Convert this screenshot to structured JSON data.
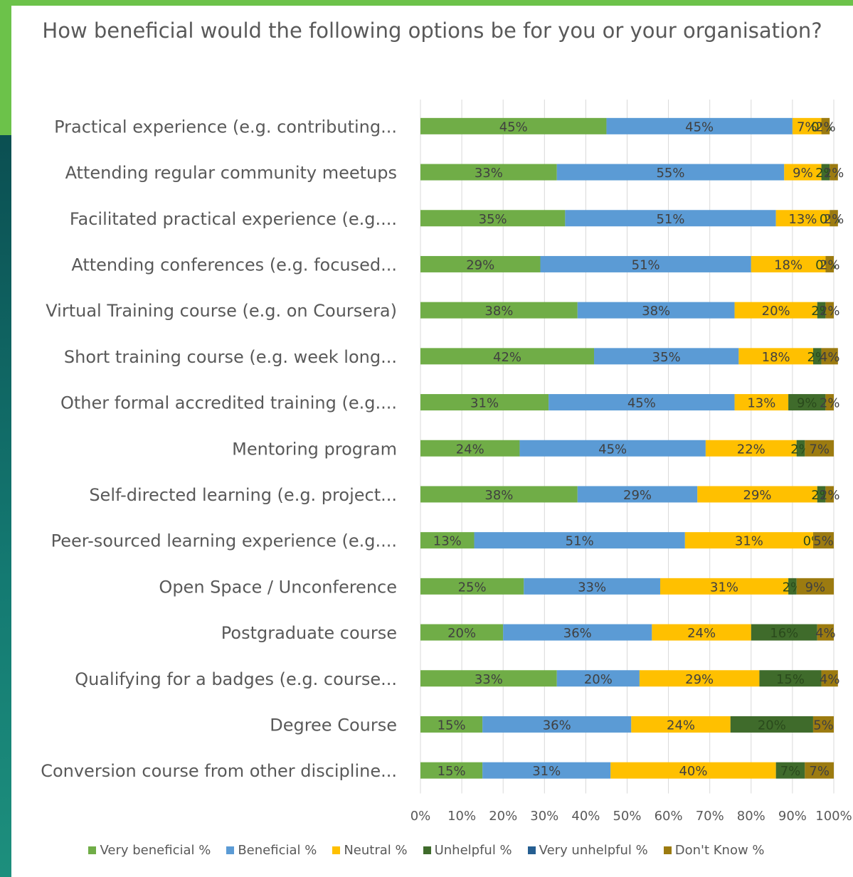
{
  "chart_data": {
    "type": "bar",
    "orientation": "horizontal",
    "stacked": "percent",
    "title": "How beneficial would the following options be for you or your organisation?",
    "categories": [
      "Practical experience (e.g. contributing...",
      "Attending regular community meetups",
      "Facilitated practical experience (e.g....",
      "Attending conferences (e.g. focused...",
      "Virtual Training course (e.g. on Coursera)",
      "Short training course (e.g. week long...",
      "Other formal accredited training (e.g....",
      "Mentoring program",
      "Self-directed learning (e.g. project...",
      "Peer-sourced learning experience (e.g....",
      "Open Space / Unconference",
      "Postgraduate course",
      "Qualifying for a badges (e.g. course...",
      "Degree Course",
      "Conversion course from other discipline..."
    ],
    "series": [
      {
        "name": "Very beneficial %",
        "color": "#70ad47",
        "values": [
          45,
          33,
          35,
          29,
          38,
          42,
          31,
          24,
          38,
          13,
          25,
          20,
          33,
          15,
          15
        ]
      },
      {
        "name": "Beneficial %",
        "color": "#5b9bd5",
        "values": [
          45,
          55,
          51,
          51,
          38,
          35,
          45,
          45,
          29,
          51,
          33,
          36,
          20,
          36,
          31
        ]
      },
      {
        "name": "Neutral %",
        "color": "#ffc000",
        "values": [
          7,
          9,
          13,
          18,
          20,
          18,
          13,
          22,
          29,
          31,
          31,
          24,
          29,
          24,
          40
        ]
      },
      {
        "name": "Unhelpful %",
        "color": "#3f6b2b",
        "values": [
          0,
          2,
          0,
          0,
          2,
          2,
          9,
          2,
          2,
          0,
          2,
          16,
          15,
          20,
          7
        ]
      },
      {
        "name": "Very unhelpful %",
        "color": "#255e91",
        "values": [
          0,
          0,
          0,
          0,
          0,
          0,
          0,
          0,
          0,
          0,
          0,
          0,
          0,
          0,
          0
        ]
      },
      {
        "name": "Don't Know %",
        "color": "#9c7b10",
        "values": [
          2,
          2,
          2,
          2,
          2,
          4,
          2,
          7,
          2,
          5,
          9,
          4,
          4,
          5,
          7
        ]
      }
    ],
    "xlim": [
      0,
      100
    ],
    "x_ticks": [
      "0%",
      "10%",
      "20%",
      "30%",
      "40%",
      "50%",
      "60%",
      "70%",
      "80%",
      "90%",
      "100%"
    ],
    "grid": true,
    "legend_position": "bottom"
  }
}
